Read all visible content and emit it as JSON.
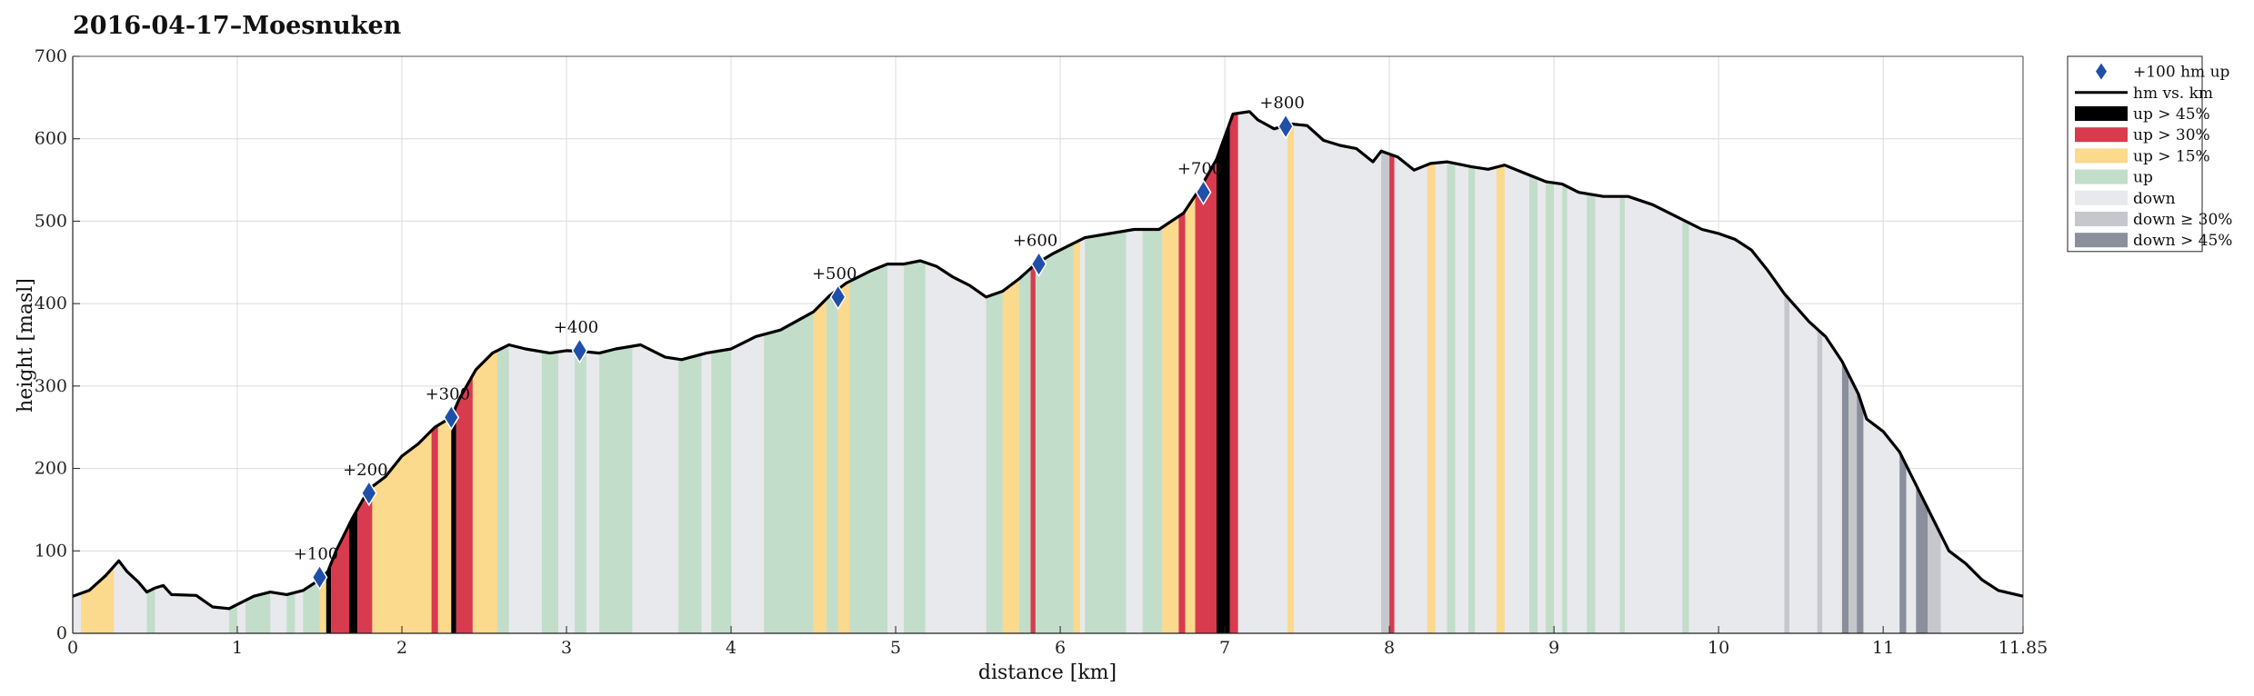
{
  "chart_data": {
    "type": "area",
    "title": "2016-04-17–Moesnuken",
    "xlabel": "distance [km]",
    "ylabel": "height [masl]",
    "xlim": [
      0,
      11.85
    ],
    "ylim": [
      0,
      700
    ],
    "x_ticks": [
      0,
      1,
      2,
      3,
      4,
      5,
      6,
      7,
      8,
      9,
      10,
      11,
      11.85
    ],
    "x_tick_labels": [
      "0",
      "1",
      "2",
      "3",
      "4",
      "5",
      "6",
      "7",
      "8",
      "9",
      "10",
      "11",
      "11.85"
    ],
    "y_ticks": [
      0,
      100,
      200,
      300,
      400,
      500,
      600,
      700
    ],
    "grid": true,
    "legend_position": "outside-right-top",
    "legend": [
      {
        "label": "+100 hm up",
        "kind": "marker",
        "color": "#1f4fa8"
      },
      {
        "label": "hm vs. km",
        "kind": "line",
        "color": "#000000"
      },
      {
        "label": "up > 45%",
        "kind": "patch",
        "color": "#000000"
      },
      {
        "label": "up > 30%",
        "kind": "patch",
        "color": "#d83a4e"
      },
      {
        "label": "up > 15%",
        "kind": "patch",
        "color": "#fbd98d"
      },
      {
        "label": "up",
        "kind": "patch",
        "color": "#c2ddca"
      },
      {
        "label": "down",
        "kind": "patch",
        "color": "#e8e9ec"
      },
      {
        "label": "down ≥ 30%",
        "kind": "patch",
        "color": "#c5c7cd"
      },
      {
        "label": "down > 45%",
        "kind": "patch",
        "color": "#8a8f9b"
      }
    ],
    "profile": {
      "x": [
        0,
        0.1,
        0.2,
        0.28,
        0.33,
        0.4,
        0.45,
        0.5,
        0.55,
        0.6,
        0.75,
        0.85,
        0.95,
        1.05,
        1.1,
        1.2,
        1.3,
        1.4,
        1.5,
        1.55,
        1.6,
        1.7,
        1.8,
        1.9,
        2.0,
        2.1,
        2.2,
        2.3,
        2.35,
        2.45,
        2.55,
        2.65,
        2.75,
        2.9,
        3.0,
        3.1,
        3.2,
        3.3,
        3.45,
        3.6,
        3.7,
        3.85,
        4.0,
        4.15,
        4.3,
        4.5,
        4.6,
        4.7,
        4.85,
        4.95,
        5.05,
        5.15,
        5.25,
        5.35,
        5.45,
        5.55,
        5.65,
        5.75,
        5.85,
        5.95,
        6.05,
        6.15,
        6.3,
        6.45,
        6.6,
        6.75,
        6.85,
        6.95,
        7.05,
        7.15,
        7.2,
        7.3,
        7.4,
        7.5,
        7.6,
        7.7,
        7.8,
        7.9,
        7.95,
        8.05,
        8.15,
        8.25,
        8.35,
        8.5,
        8.6,
        8.7,
        8.8,
        8.95,
        9.05,
        9.15,
        9.3,
        9.45,
        9.6,
        9.75,
        9.9,
        10.0,
        10.1,
        10.2,
        10.3,
        10.4,
        10.55,
        10.65,
        10.75,
        10.85,
        10.9,
        11.0,
        11.1,
        11.2,
        11.3,
        11.4,
        11.5,
        11.6,
        11.7,
        11.85
      ],
      "y": [
        45,
        52,
        70,
        88,
        75,
        62,
        50,
        55,
        58,
        47,
        46,
        32,
        30,
        40,
        45,
        50,
        47,
        52,
        65,
        75,
        100,
        140,
        175,
        190,
        215,
        230,
        250,
        262,
        285,
        320,
        340,
        350,
        345,
        340,
        343,
        342,
        340,
        345,
        350,
        335,
        332,
        340,
        345,
        360,
        368,
        390,
        410,
        425,
        440,
        448,
        448,
        452,
        445,
        432,
        422,
        408,
        415,
        430,
        448,
        460,
        470,
        480,
        485,
        490,
        490,
        510,
        540,
        575,
        630,
        633,
        623,
        612,
        618,
        616,
        598,
        592,
        588,
        572,
        585,
        578,
        562,
        570,
        572,
        566,
        563,
        568,
        560,
        548,
        545,
        535,
        530,
        530,
        520,
        505,
        490,
        485,
        478,
        465,
        440,
        412,
        378,
        360,
        330,
        290,
        260,
        245,
        220,
        180,
        140,
        100,
        85,
        65,
        52,
        45
      ]
    },
    "segments": [
      {
        "x0": 0.05,
        "x1": 0.25,
        "type": "up > 15%"
      },
      {
        "x0": 0.45,
        "x1": 0.5,
        "type": "up"
      },
      {
        "x0": 0.95,
        "x1": 1.0,
        "type": "up"
      },
      {
        "x0": 1.05,
        "x1": 1.2,
        "type": "up"
      },
      {
        "x0": 1.3,
        "x1": 1.35,
        "type": "up"
      },
      {
        "x0": 1.4,
        "x1": 1.5,
        "type": "up"
      },
      {
        "x0": 1.5,
        "x1": 1.54,
        "type": "up > 15%"
      },
      {
        "x0": 1.54,
        "x1": 1.57,
        "type": "up > 45%"
      },
      {
        "x0": 1.57,
        "x1": 1.68,
        "type": "up > 30%"
      },
      {
        "x0": 1.68,
        "x1": 1.73,
        "type": "up > 45%"
      },
      {
        "x0": 1.73,
        "x1": 1.82,
        "type": "up > 30%"
      },
      {
        "x0": 1.82,
        "x1": 2.18,
        "type": "up > 15%"
      },
      {
        "x0": 2.18,
        "x1": 2.22,
        "type": "up > 30%"
      },
      {
        "x0": 2.22,
        "x1": 2.3,
        "type": "up > 15%"
      },
      {
        "x0": 2.3,
        "x1": 2.33,
        "type": "up > 45%"
      },
      {
        "x0": 2.33,
        "x1": 2.43,
        "type": "up > 30%"
      },
      {
        "x0": 2.43,
        "x1": 2.58,
        "type": "up > 15%"
      },
      {
        "x0": 2.58,
        "x1": 2.65,
        "type": "up"
      },
      {
        "x0": 2.85,
        "x1": 2.95,
        "type": "up"
      },
      {
        "x0": 3.05,
        "x1": 3.12,
        "type": "up"
      },
      {
        "x0": 3.2,
        "x1": 3.4,
        "type": "up"
      },
      {
        "x0": 3.68,
        "x1": 3.82,
        "type": "up"
      },
      {
        "x0": 3.88,
        "x1": 4.0,
        "type": "up"
      },
      {
        "x0": 4.2,
        "x1": 4.5,
        "type": "up"
      },
      {
        "x0": 4.5,
        "x1": 4.58,
        "type": "up > 15%"
      },
      {
        "x0": 4.58,
        "x1": 4.65,
        "type": "up"
      },
      {
        "x0": 4.65,
        "x1": 4.72,
        "type": "up > 15%"
      },
      {
        "x0": 4.72,
        "x1": 4.95,
        "type": "up"
      },
      {
        "x0": 5.05,
        "x1": 5.18,
        "type": "up"
      },
      {
        "x0": 5.55,
        "x1": 5.65,
        "type": "up"
      },
      {
        "x0": 5.65,
        "x1": 5.75,
        "type": "up > 15%"
      },
      {
        "x0": 5.75,
        "x1": 5.82,
        "type": "up"
      },
      {
        "x0": 5.82,
        "x1": 5.85,
        "type": "up > 30%"
      },
      {
        "x0": 5.85,
        "x1": 6.08,
        "type": "up"
      },
      {
        "x0": 6.08,
        "x1": 6.12,
        "type": "up > 15%"
      },
      {
        "x0": 6.15,
        "x1": 6.4,
        "type": "up"
      },
      {
        "x0": 6.5,
        "x1": 6.62,
        "type": "up"
      },
      {
        "x0": 6.62,
        "x1": 6.72,
        "type": "up > 15%"
      },
      {
        "x0": 6.72,
        "x1": 6.76,
        "type": "up > 30%"
      },
      {
        "x0": 6.76,
        "x1": 6.82,
        "type": "up > 15%"
      },
      {
        "x0": 6.82,
        "x1": 6.95,
        "type": "up > 30%"
      },
      {
        "x0": 6.95,
        "x1": 7.03,
        "type": "up > 45%"
      },
      {
        "x0": 7.03,
        "x1": 7.08,
        "type": "up > 30%"
      },
      {
        "x0": 7.38,
        "x1": 7.42,
        "type": "up > 15%"
      },
      {
        "x0": 7.95,
        "x1": 8.0,
        "type": "down ≥ 30%"
      },
      {
        "x0": 8.0,
        "x1": 8.03,
        "type": "up > 30%"
      },
      {
        "x0": 8.23,
        "x1": 8.28,
        "type": "up > 15%"
      },
      {
        "x0": 8.35,
        "x1": 8.4,
        "type": "up"
      },
      {
        "x0": 8.48,
        "x1": 8.52,
        "type": "up"
      },
      {
        "x0": 8.65,
        "x1": 8.7,
        "type": "up > 15%"
      },
      {
        "x0": 8.85,
        "x1": 8.9,
        "type": "up"
      },
      {
        "x0": 8.95,
        "x1": 9.0,
        "type": "up"
      },
      {
        "x0": 9.05,
        "x1": 9.08,
        "type": "up"
      },
      {
        "x0": 9.2,
        "x1": 9.25,
        "type": "up"
      },
      {
        "x0": 9.4,
        "x1": 9.43,
        "type": "up"
      },
      {
        "x0": 9.78,
        "x1": 9.82,
        "type": "up"
      },
      {
        "x0": 10.4,
        "x1": 10.43,
        "type": "down ≥ 30%"
      },
      {
        "x0": 10.6,
        "x1": 10.63,
        "type": "down ≥ 30%"
      },
      {
        "x0": 10.75,
        "x1": 10.79,
        "type": "down > 45%"
      },
      {
        "x0": 10.79,
        "x1": 10.84,
        "type": "down ≥ 30%"
      },
      {
        "x0": 10.84,
        "x1": 10.88,
        "type": "down > 45%"
      },
      {
        "x0": 11.1,
        "x1": 11.14,
        "type": "down > 45%"
      },
      {
        "x0": 11.2,
        "x1": 11.27,
        "type": "down > 45%"
      },
      {
        "x0": 11.27,
        "x1": 11.35,
        "type": "down ≥ 30%"
      }
    ],
    "markers": [
      {
        "x": 1.5,
        "y": 68,
        "label": "+100"
      },
      {
        "x": 1.8,
        "y": 170,
        "label": "+200"
      },
      {
        "x": 2.3,
        "y": 262,
        "label": "+300"
      },
      {
        "x": 3.08,
        "y": 343,
        "label": "+400"
      },
      {
        "x": 4.65,
        "y": 408,
        "label": "+500"
      },
      {
        "x": 5.87,
        "y": 448,
        "label": "+600"
      },
      {
        "x": 6.87,
        "y": 535,
        "label": "+700"
      },
      {
        "x": 7.37,
        "y": 615,
        "label": "+800"
      }
    ]
  }
}
